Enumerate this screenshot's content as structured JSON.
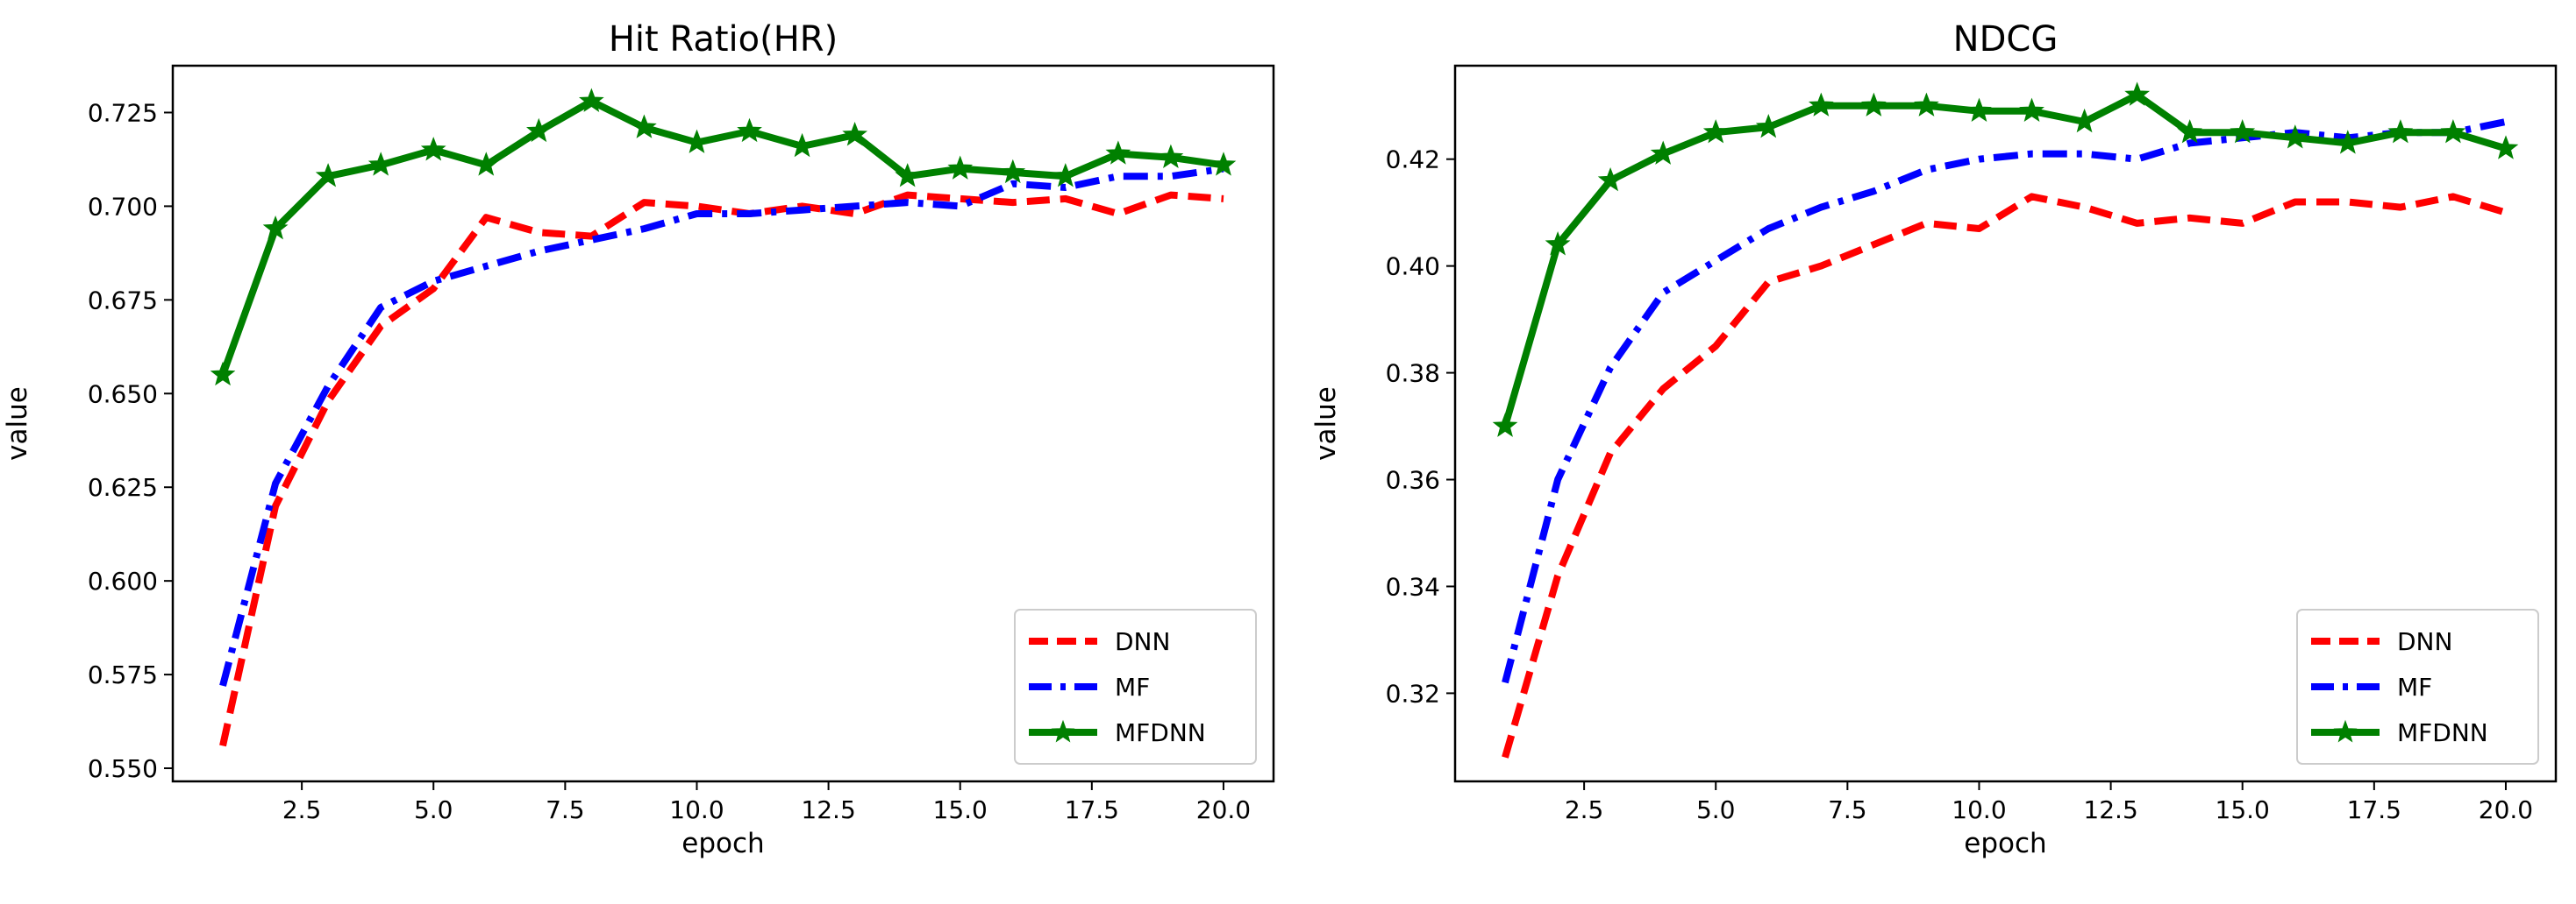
{
  "chart_data": [
    {
      "type": "line",
      "title": "Hit Ratio(HR)",
      "xlabel": "epoch",
      "ylabel": "value",
      "xlim": [
        0.05,
        20.95
      ],
      "ylim": [
        0.5465,
        0.7375
      ],
      "xticks": [
        2.5,
        5.0,
        7.5,
        10.0,
        12.5,
        15.0,
        17.5,
        20.0
      ],
      "xtick_labels": [
        "2.5",
        "5.0",
        "7.5",
        "10.0",
        "12.5",
        "15.0",
        "17.5",
        "20.0"
      ],
      "yticks": [
        0.55,
        0.575,
        0.6,
        0.625,
        0.65,
        0.675,
        0.7,
        0.725
      ],
      "ytick_labels": [
        "0.550",
        "0.575",
        "0.600",
        "0.625",
        "0.650",
        "0.675",
        "0.700",
        "0.725"
      ],
      "grid": false,
      "legend": "lower right",
      "x": [
        1,
        2,
        3,
        4,
        5,
        6,
        7,
        8,
        9,
        10,
        11,
        12,
        13,
        14,
        15,
        16,
        17,
        18,
        19,
        20
      ],
      "series": [
        {
          "name": "DNN",
          "color": "#ff0000",
          "style": "dashed",
          "marker": "none",
          "values": [
            0.556,
            0.62,
            0.648,
            0.668,
            0.678,
            0.697,
            0.693,
            0.692,
            0.701,
            0.7,
            0.698,
            0.7,
            0.698,
            0.703,
            0.702,
            0.701,
            0.702,
            0.698,
            0.703,
            0.702
          ]
        },
        {
          "name": "MF",
          "color": "#0000ff",
          "style": "dashdot",
          "marker": "none",
          "values": [
            0.572,
            0.626,
            0.652,
            0.673,
            0.68,
            0.684,
            0.688,
            0.691,
            0.694,
            0.698,
            0.698,
            0.699,
            0.7,
            0.701,
            0.7,
            0.706,
            0.705,
            0.708,
            0.708,
            0.71
          ]
        },
        {
          "name": "MFDNN",
          "color": "#008000",
          "style": "solid",
          "marker": "star",
          "values": [
            0.655,
            0.694,
            0.708,
            0.711,
            0.715,
            0.711,
            0.72,
            0.728,
            0.721,
            0.717,
            0.72,
            0.716,
            0.719,
            0.708,
            0.71,
            0.709,
            0.708,
            0.714,
            0.713,
            0.711
          ]
        }
      ]
    },
    {
      "type": "line",
      "title": "NDCG",
      "xlabel": "epoch",
      "ylabel": "value",
      "xlim": [
        0.05,
        20.95
      ],
      "ylim": [
        0.3035,
        0.4375
      ],
      "xticks": [
        2.5,
        5.0,
        7.5,
        10.0,
        12.5,
        15.0,
        17.5,
        20.0
      ],
      "xtick_labels": [
        "2.5",
        "5.0",
        "7.5",
        "10.0",
        "12.5",
        "15.0",
        "17.5",
        "20.0"
      ],
      "yticks": [
        0.32,
        0.34,
        0.36,
        0.38,
        0.4,
        0.42
      ],
      "ytick_labels": [
        "0.32",
        "0.34",
        "0.36",
        "0.38",
        "0.40",
        "0.42"
      ],
      "grid": false,
      "legend": "lower right",
      "x": [
        1,
        2,
        3,
        4,
        5,
        6,
        7,
        8,
        9,
        10,
        11,
        12,
        13,
        14,
        15,
        16,
        17,
        18,
        19,
        20
      ],
      "series": [
        {
          "name": "DNN",
          "color": "#ff0000",
          "style": "dashed",
          "marker": "none",
          "values": [
            0.308,
            0.342,
            0.365,
            0.377,
            0.385,
            0.397,
            0.4,
            0.404,
            0.408,
            0.407,
            0.413,
            0.411,
            0.408,
            0.409,
            0.408,
            0.412,
            0.412,
            0.411,
            0.413,
            0.41
          ]
        },
        {
          "name": "MF",
          "color": "#0000ff",
          "style": "dashdot",
          "marker": "none",
          "values": [
            0.322,
            0.36,
            0.381,
            0.395,
            0.401,
            0.407,
            0.411,
            0.414,
            0.418,
            0.42,
            0.421,
            0.421,
            0.42,
            0.423,
            0.424,
            0.425,
            0.424,
            0.425,
            0.425,
            0.427
          ]
        },
        {
          "name": "MFDNN",
          "color": "#008000",
          "style": "solid",
          "marker": "star",
          "values": [
            0.37,
            0.404,
            0.416,
            0.421,
            0.425,
            0.426,
            0.43,
            0.43,
            0.43,
            0.429,
            0.429,
            0.427,
            0.432,
            0.425,
            0.425,
            0.424,
            0.423,
            0.425,
            0.425,
            0.422
          ]
        }
      ]
    }
  ]
}
